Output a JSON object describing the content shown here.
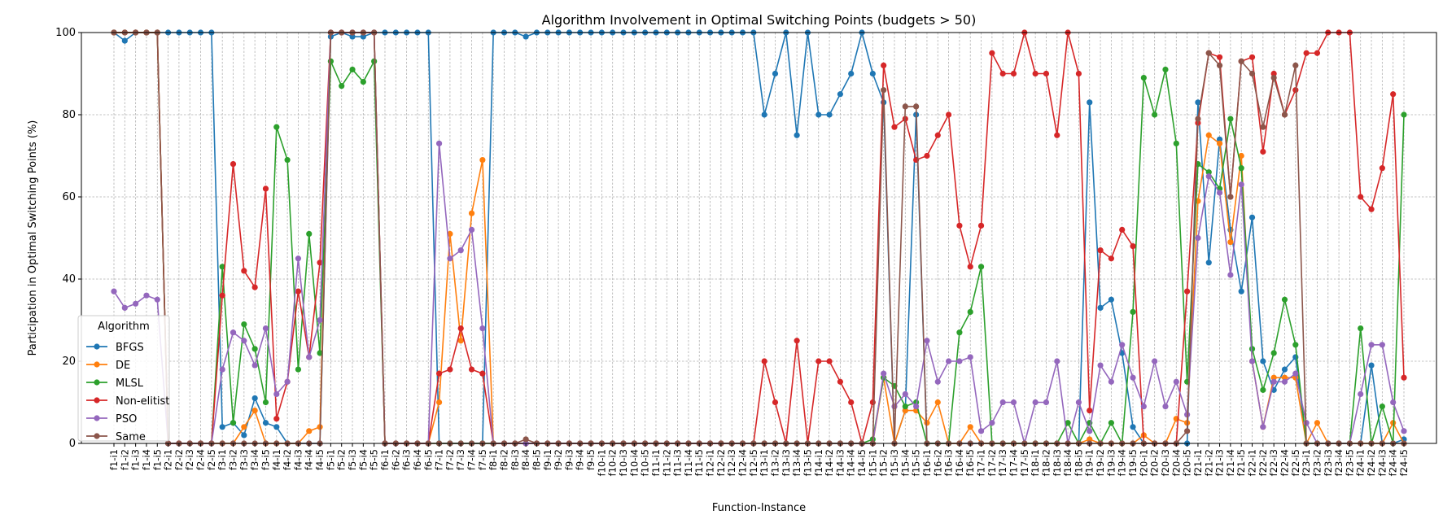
{
  "chart_data": {
    "type": "line",
    "title": "Algorithm Involvement in Optimal Switching Points (budgets > 50)",
    "xlabel": "Function-Instance",
    "ylabel": "Participation in Optimal Switching Points (%)",
    "ylim": [
      0,
      100
    ],
    "yticks": [
      0,
      20,
      40,
      60,
      80,
      100
    ],
    "grid": true,
    "legend": {
      "title": "Algorithm",
      "placement": "lower-left"
    },
    "categories": [
      "f1-i1",
      "f1-i2",
      "f1-i3",
      "f1-i4",
      "f1-i5",
      "f2-i1",
      "f2-i2",
      "f2-i3",
      "f2-i4",
      "f2-i5",
      "f3-i1",
      "f3-i2",
      "f3-i3",
      "f3-i4",
      "f3-i5",
      "f4-i1",
      "f4-i2",
      "f4-i3",
      "f4-i4",
      "f4-i5",
      "f5-i1",
      "f5-i2",
      "f5-i3",
      "f5-i4",
      "f5-i5",
      "f6-i1",
      "f6-i2",
      "f6-i3",
      "f6-i4",
      "f6-i5",
      "f7-i1",
      "f7-i2",
      "f7-i3",
      "f7-i4",
      "f7-i5",
      "f8-i1",
      "f8-i2",
      "f8-i3",
      "f8-i4",
      "f8-i5",
      "f9-i1",
      "f9-i2",
      "f9-i3",
      "f9-i4",
      "f9-i5",
      "f10-i1",
      "f10-i2",
      "f10-i3",
      "f10-i4",
      "f10-i5",
      "f11-i1",
      "f11-i2",
      "f11-i3",
      "f11-i4",
      "f11-i5",
      "f12-i1",
      "f12-i2",
      "f12-i3",
      "f12-i4",
      "f12-i5",
      "f13-i1",
      "f13-i2",
      "f13-i3",
      "f13-i4",
      "f13-i5",
      "f14-i1",
      "f14-i2",
      "f14-i3",
      "f14-i4",
      "f14-i5",
      "f15-i1",
      "f15-i2",
      "f15-i3",
      "f15-i4",
      "f15-i5",
      "f16-i1",
      "f16-i2",
      "f16-i3",
      "f16-i4",
      "f16-i5",
      "f17-i1",
      "f17-i2",
      "f17-i3",
      "f17-i4",
      "f17-i5",
      "f18-i1",
      "f18-i2",
      "f18-i3",
      "f18-i4",
      "f18-i5",
      "f19-i1",
      "f19-i2",
      "f19-i3",
      "f19-i4",
      "f19-i5",
      "f20-i1",
      "f20-i2",
      "f20-i3",
      "f20-i4",
      "f20-i5",
      "f21-i1",
      "f21-i2",
      "f21-i3",
      "f21-i4",
      "f21-i5",
      "f22-i1",
      "f22-i2",
      "f22-i3",
      "f22-i4",
      "f22-i5",
      "f23-i1",
      "f23-i2",
      "f23-i3",
      "f23-i4",
      "f23-i5",
      "f24-i1",
      "f24-i2",
      "f24-i3",
      "f24-i4",
      "f24-i5"
    ],
    "tick_labels": [
      "f1-i1",
      "f1-i2",
      "f1-i3",
      "f1-i4",
      "f1-i5",
      "f2-i1",
      "f2-i2",
      "f2-i3",
      "f2-i4",
      "f2-i5",
      "f3-i1",
      "f3-i2",
      "f3-i3",
      "f3-i4",
      "f3-i5",
      "f4-i1",
      "f4-i2",
      "f4-i3",
      "f4-i4",
      "f4-i5",
      "f5-i1",
      "f5-i2",
      "f5-i3",
      "f5-i4",
      "f5-i5",
      "f6-i1",
      "f6-i2",
      "f6-i3",
      "f6-i4",
      "f6-i5",
      "f7-i1",
      "f7-i2",
      "f7-i3",
      "f7-i4",
      "f7-i5",
      "f8-i1",
      "f8-i2",
      "f8-i3",
      "f8-i4",
      "f8-i5",
      "f9-i1",
      "f9-i2",
      "f9-i3",
      "f9-i4",
      "f9-i5",
      "f10-i1",
      "f10-i2",
      "f10-i3",
      "f10-i4",
      "f10-i5",
      "f11-i1",
      "f11-i2",
      "f11-i3",
      "f11-i4",
      "f11-i5",
      "f12-i1",
      "f12-i2",
      "f12-i3",
      "f12-i4",
      "f12-i5",
      "f13-i1",
      "f13-i2",
      "f13-i3",
      "f13-i4",
      "f13-i5",
      "f14-i1",
      "f14-i2",
      "f14-i3",
      "f14-i4",
      "f14-i5",
      "f15-i1",
      "f15-i2",
      "f15-i3",
      "f15-i4",
      "f15-i5",
      "f16-i1",
      "f16-i2",
      "f16-i3",
      "f16-i4",
      "f16-i5",
      "f17-i1",
      "f17-i2",
      "f17-i3",
      "f17-i4",
      "f17-i5",
      "f18-i1",
      "f18-i2",
      "f18-i3",
      "f18-i4",
      "f18-i5",
      "f19-i1",
      "f19-i2",
      "f19-i3",
      "f19-i4",
      "f19-i5",
      "f20-i1",
      "f20-i2",
      "f20-i3",
      "f20-i4",
      "f20-i5",
      "f21-i1",
      "f21-i2",
      "f21-i3",
      "f21-i4",
      "f21-i5",
      "f22-i1",
      "f22-i2",
      "f22-i3",
      "f22-i4",
      "f22-i5",
      "f23-i1",
      "f23-i2",
      "f23-i3",
      "f23-i4",
      "f23-i5",
      "f24-i1",
      "f24-i2",
      "f24-i3",
      "f24-i4",
      "f24-i5"
    ],
    "series": [
      {
        "name": "BFGS",
        "color": "#1f77b4",
        "values": [
          100,
          98,
          100,
          100,
          100,
          100,
          100,
          100,
          100,
          100,
          4,
          5,
          2,
          11,
          5,
          4,
          0,
          0,
          0,
          0,
          99,
          100,
          99,
          99,
          100,
          100,
          100,
          100,
          100,
          100,
          0,
          0,
          0,
          0,
          0,
          100,
          100,
          100,
          99,
          100,
          100,
          100,
          100,
          100,
          100,
          100,
          100,
          100,
          100,
          100,
          100,
          100,
          100,
          100,
          100,
          100,
          100,
          100,
          100,
          100,
          80,
          90,
          100,
          75,
          100,
          80,
          80,
          85,
          90,
          100,
          90,
          83,
          0,
          8,
          80,
          0,
          0,
          0,
          0,
          0,
          0,
          0,
          0,
          0,
          0,
          0,
          0,
          0,
          0,
          0,
          83,
          33,
          35,
          22,
          4,
          0,
          0,
          0,
          0,
          0,
          83,
          44,
          74,
          52,
          37,
          55,
          20,
          13,
          18,
          21,
          0,
          0,
          0,
          0,
          0,
          0,
          19,
          0,
          0,
          1
        ]
      },
      {
        "name": "DE",
        "color": "#ff7f0e",
        "values": [
          100,
          100,
          100,
          100,
          100,
          0,
          0,
          0,
          0,
          0,
          0,
          0,
          4,
          8,
          0,
          0,
          0,
          0,
          3,
          4,
          100,
          100,
          100,
          100,
          100,
          0,
          0,
          0,
          0,
          0,
          10,
          51,
          25,
          56,
          69,
          0,
          0,
          0,
          0,
          0,
          0,
          0,
          0,
          0,
          0,
          0,
          0,
          0,
          0,
          0,
          0,
          0,
          0,
          0,
          0,
          0,
          0,
          0,
          0,
          0,
          0,
          0,
          0,
          0,
          0,
          0,
          0,
          0,
          0,
          0,
          0,
          16,
          0,
          8,
          8,
          5,
          10,
          0,
          0,
          4,
          0,
          0,
          0,
          0,
          0,
          0,
          0,
          0,
          0,
          0,
          1,
          0,
          0,
          0,
          0,
          2,
          0,
          0,
          6,
          5,
          59,
          75,
          73,
          49,
          70,
          20,
          4,
          16,
          16,
          16,
          0,
          5,
          0,
          0,
          0,
          0,
          0,
          0,
          5,
          0
        ]
      },
      {
        "name": "MLSL",
        "color": "#2ca02c",
        "values": [
          100,
          100,
          100,
          100,
          100,
          0,
          0,
          0,
          0,
          0,
          43,
          5,
          29,
          23,
          10,
          77,
          69,
          18,
          51,
          22,
          93,
          87,
          91,
          88,
          93,
          0,
          0,
          0,
          0,
          0,
          0,
          0,
          0,
          0,
          0,
          0,
          0,
          0,
          0,
          0,
          0,
          0,
          0,
          0,
          0,
          0,
          0,
          0,
          0,
          0,
          0,
          0,
          0,
          0,
          0,
          0,
          0,
          0,
          0,
          0,
          0,
          0,
          0,
          0,
          0,
          0,
          0,
          0,
          0,
          0,
          1,
          16,
          14,
          9,
          10,
          0,
          0,
          0,
          27,
          32,
          43,
          0,
          0,
          0,
          0,
          0,
          0,
          0,
          5,
          0,
          5,
          0,
          5,
          0,
          32,
          89,
          80,
          91,
          73,
          15,
          68,
          66,
          62,
          79,
          67,
          23,
          13,
          22,
          35,
          24,
          0,
          0,
          0,
          0,
          0,
          28,
          0,
          9,
          0,
          80
        ]
      },
      {
        "name": "Non-elitist",
        "color": "#d62728",
        "values": [
          100,
          100,
          100,
          100,
          100,
          0,
          0,
          0,
          0,
          0,
          36,
          68,
          42,
          38,
          62,
          6,
          15,
          37,
          21,
          44,
          100,
          100,
          100,
          100,
          100,
          0,
          0,
          0,
          0,
          0,
          17,
          18,
          28,
          18,
          17,
          0,
          0,
          0,
          0,
          0,
          0,
          0,
          0,
          0,
          0,
          0,
          0,
          0,
          0,
          0,
          0,
          0,
          0,
          0,
          0,
          0,
          0,
          0,
          0,
          0,
          20,
          10,
          0,
          25,
          0,
          20,
          20,
          15,
          10,
          0,
          10,
          92,
          77,
          79,
          69,
          70,
          75,
          80,
          53,
          43,
          53,
          95,
          90,
          90,
          100,
          90,
          90,
          75,
          100,
          90,
          8,
          47,
          45,
          52,
          48,
          0,
          0,
          0,
          0,
          37,
          78,
          95,
          94,
          60,
          93,
          94,
          71,
          90,
          80,
          86,
          95,
          95,
          100,
          100,
          100,
          60,
          57,
          67,
          85,
          16
        ]
      },
      {
        "name": "PSO",
        "color": "#9467bd",
        "values": [
          37,
          33,
          34,
          36,
          35,
          0,
          0,
          0,
          0,
          0,
          18,
          27,
          25,
          19,
          28,
          12,
          15,
          45,
          21,
          30,
          100,
          100,
          100,
          100,
          100,
          0,
          0,
          0,
          0,
          0,
          73,
          45,
          47,
          52,
          28,
          0,
          0,
          0,
          0,
          0,
          0,
          0,
          0,
          0,
          0,
          0,
          0,
          0,
          0,
          0,
          0,
          0,
          0,
          0,
          0,
          0,
          0,
          0,
          0,
          0,
          0,
          0,
          0,
          0,
          0,
          0,
          0,
          0,
          0,
          0,
          0,
          17,
          9,
          12,
          9,
          25,
          15,
          20,
          20,
          21,
          3,
          5,
          10,
          10,
          0,
          10,
          10,
          20,
          0,
          10,
          3,
          19,
          15,
          24,
          16,
          9,
          20,
          9,
          15,
          7,
          50,
          65,
          61,
          41,
          63,
          20,
          4,
          15,
          15,
          17,
          5,
          0,
          0,
          0,
          0,
          12,
          24,
          24,
          10,
          3
        ]
      },
      {
        "name": "Same",
        "color": "#8c564b",
        "values": [
          100,
          100,
          100,
          100,
          100,
          0,
          0,
          0,
          0,
          0,
          0,
          0,
          0,
          0,
          0,
          0,
          0,
          0,
          0,
          0,
          100,
          100,
          100,
          100,
          100,
          0,
          0,
          0,
          0,
          0,
          0,
          0,
          0,
          0,
          0,
          0,
          0,
          0,
          1,
          0,
          0,
          0,
          0,
          0,
          0,
          0,
          0,
          0,
          0,
          0,
          0,
          0,
          0,
          0,
          0,
          0,
          0,
          0,
          0,
          0,
          0,
          0,
          0,
          0,
          0,
          0,
          0,
          0,
          0,
          0,
          0,
          86,
          0,
          82,
          82,
          0,
          0,
          0,
          0,
          0,
          0,
          0,
          0,
          0,
          0,
          0,
          0,
          0,
          0,
          0,
          0,
          0,
          0,
          0,
          0,
          0,
          0,
          0,
          0,
          3,
          79,
          95,
          92,
          60,
          93,
          90,
          77,
          89,
          80,
          92,
          0,
          0,
          0,
          0,
          0,
          0,
          0,
          0,
          0,
          0
        ]
      }
    ]
  }
}
